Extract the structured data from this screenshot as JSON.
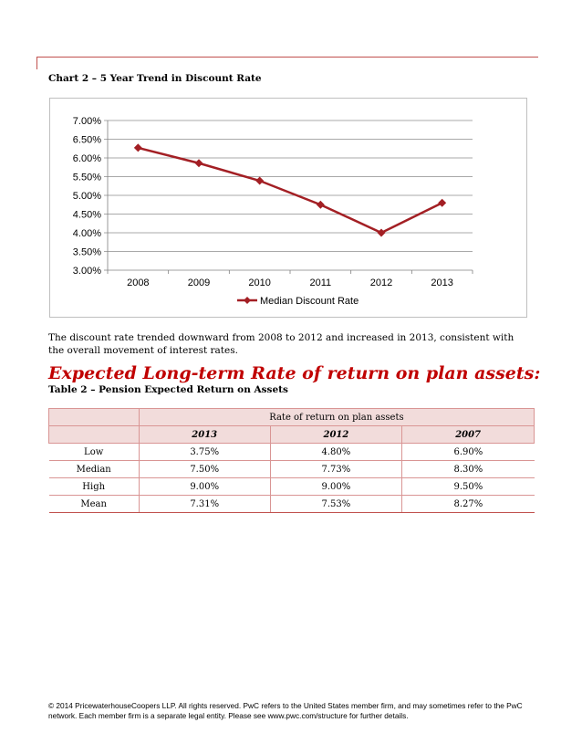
{
  "chart": {
    "title": "Chart 2 – 5 Year Trend in Discount Rate"
  },
  "chart_data": {
    "type": "line",
    "categories": [
      "2008",
      "2009",
      "2010",
      "2011",
      "2012",
      "2013"
    ],
    "series": [
      {
        "name": "Median Discount Rate",
        "values": [
          6.27,
          5.86,
          5.39,
          4.75,
          4.0,
          4.8
        ],
        "color": "#a31f24"
      }
    ],
    "ylim": [
      3.0,
      7.0
    ],
    "yticks": [
      "3.00%",
      "3.50%",
      "4.00%",
      "4.50%",
      "5.00%",
      "5.50%",
      "6.00%",
      "6.50%",
      "7.00%"
    ],
    "grid": true,
    "legend": "bottom"
  },
  "paragraph": "The discount rate trended downward from 2008 to 2012 and increased in 2013, consistent with the overall movement of interest rates.",
  "section_heading": "Expected Long-term Rate of return on plan assets:",
  "table": {
    "title": "Table 2 – Pension Expected Return on Assets",
    "group_header": "Rate of return on plan assets",
    "years": [
      "2013",
      "2012",
      "2007"
    ],
    "rows": [
      {
        "label": "Low",
        "values": [
          "3.75%",
          "4.80%",
          "6.90%"
        ]
      },
      {
        "label": "Median",
        "values": [
          "7.50%",
          "7.73%",
          "8.30%"
        ]
      },
      {
        "label": "High",
        "values": [
          "9.00%",
          "9.00%",
          "9.50%"
        ]
      },
      {
        "label": "Mean",
        "values": [
          "7.31%",
          "7.53%",
          "8.27%"
        ]
      }
    ]
  },
  "footer": "© 2014 PricewaterhouseCoopers LLP. All rights reserved. PwC refers to the United States member firm, and may sometimes refer to the PwC network. Each member firm is a separate legal entity. Please see www.pwc.com/structure for further details."
}
